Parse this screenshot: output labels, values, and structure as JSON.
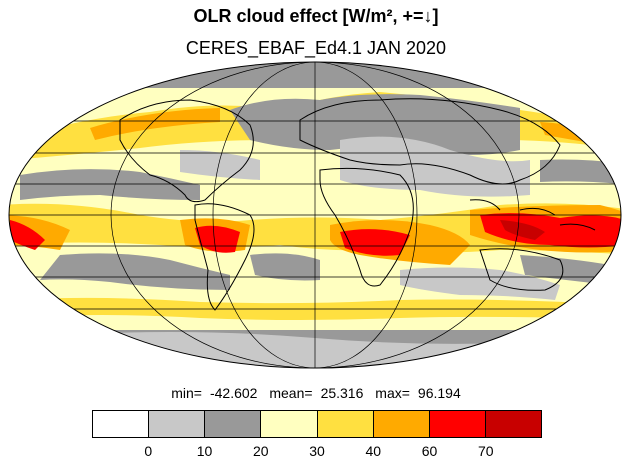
{
  "header": {
    "title": "OLR cloud effect [W/m², +=↓]",
    "subtitle": "CERES_EBAF_Ed4.1 JAN 2020"
  },
  "stats": {
    "min_label": "min=",
    "min_value": "-42.602",
    "mean_label": "mean=",
    "mean_value": "25.316",
    "max_label": "max=",
    "max_value": "96.194"
  },
  "colorbar": {
    "ticks": [
      "0",
      "10",
      "20",
      "30",
      "40",
      "60",
      "70"
    ],
    "colors": [
      "#ffffff",
      "#c8c8c8",
      "#999999",
      "#ffffc0",
      "#ffe040",
      "#ffaa00",
      "#ff0000",
      "#c80000"
    ]
  },
  "map": {
    "projection": "mollweide",
    "ocean_color": "#ffffc0",
    "coast_color": "#000000",
    "grid_color": "#000000"
  }
}
